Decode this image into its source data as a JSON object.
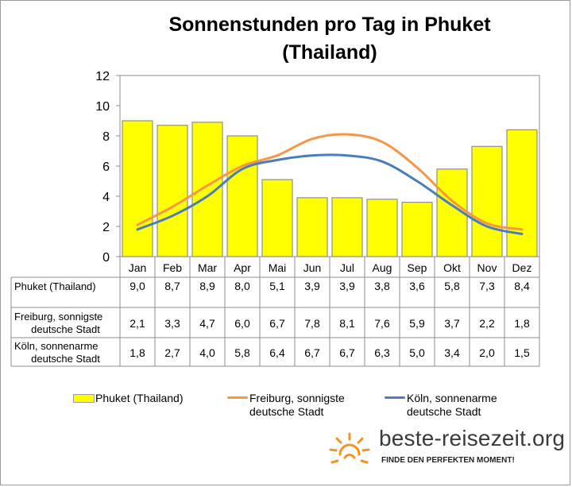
{
  "chart_data": {
    "type": "bar",
    "title_line1": "Sonnenstunden pro Tag in Phuket",
    "title_line2": "(Thailand)",
    "categories": [
      "Jan",
      "Feb",
      "Mar",
      "Apr",
      "Mai",
      "Jun",
      "Jul",
      "Aug",
      "Sep",
      "Okt",
      "Nov",
      "Dez"
    ],
    "ylim": [
      0,
      12
    ],
    "yticks": [
      "0",
      "2",
      "4",
      "6",
      "8",
      "10",
      "12"
    ],
    "grid": false,
    "legend_position": "bottom",
    "series": [
      {
        "name": "Phuket (Thailand)",
        "kind": "bar",
        "color": "#ffff00",
        "values": [
          9.0,
          8.7,
          8.9,
          8.0,
          5.1,
          3.9,
          3.9,
          3.8,
          3.6,
          5.8,
          7.3,
          8.4
        ],
        "table_label_lines": [
          "Phuket (Thailand)"
        ],
        "table_values": [
          "9,0",
          "8,7",
          "8,9",
          "8,0",
          "5,1",
          "3,9",
          "3,9",
          "3,8",
          "3,6",
          "5,8",
          "7,3",
          "8,4"
        ]
      },
      {
        "name": "Freiburg, sonnigste deutsche Stadt",
        "kind": "line",
        "color": "#f79646",
        "values": [
          2.1,
          3.3,
          4.7,
          6.0,
          6.7,
          7.8,
          8.1,
          7.6,
          5.9,
          3.7,
          2.2,
          1.8
        ],
        "table_label_lines": [
          "Freiburg, sonnigste",
          "deutsche Stadt"
        ],
        "table_values": [
          "2,1",
          "3,3",
          "4,7",
          "6,0",
          "6,7",
          "7,8",
          "8,1",
          "7,6",
          "5,9",
          "3,7",
          "2,2",
          "1,8"
        ]
      },
      {
        "name": "Köln, sonnenarme deutsche Stadt",
        "kind": "line",
        "color": "#4a7ebb",
        "values": [
          1.8,
          2.7,
          4.0,
          5.8,
          6.4,
          6.7,
          6.7,
          6.3,
          5.0,
          3.4,
          2.0,
          1.5
        ],
        "table_label_lines": [
          "Köln, sonnenarme",
          "deutsche Stadt"
        ],
        "table_values": [
          "1,8",
          "2,7",
          "4,0",
          "5,8",
          "6,4",
          "6,7",
          "6,7",
          "6,3",
          "5,0",
          "3,4",
          "2,0",
          "1,5"
        ]
      }
    ],
    "legend": [
      {
        "lines": [
          "Phuket (Thailand)"
        ]
      },
      {
        "lines": [
          "Freiburg, sonnigste",
          "deutsche Stadt"
        ]
      },
      {
        "lines": [
          "Köln, sonnenarme",
          "deutsche Stadt"
        ]
      }
    ]
  },
  "logo": {
    "text": "beste-reisezeit.org",
    "tagline": "FINDE DEN PERFEKTEN MOMENT!",
    "sun_color": "#f7931e"
  }
}
